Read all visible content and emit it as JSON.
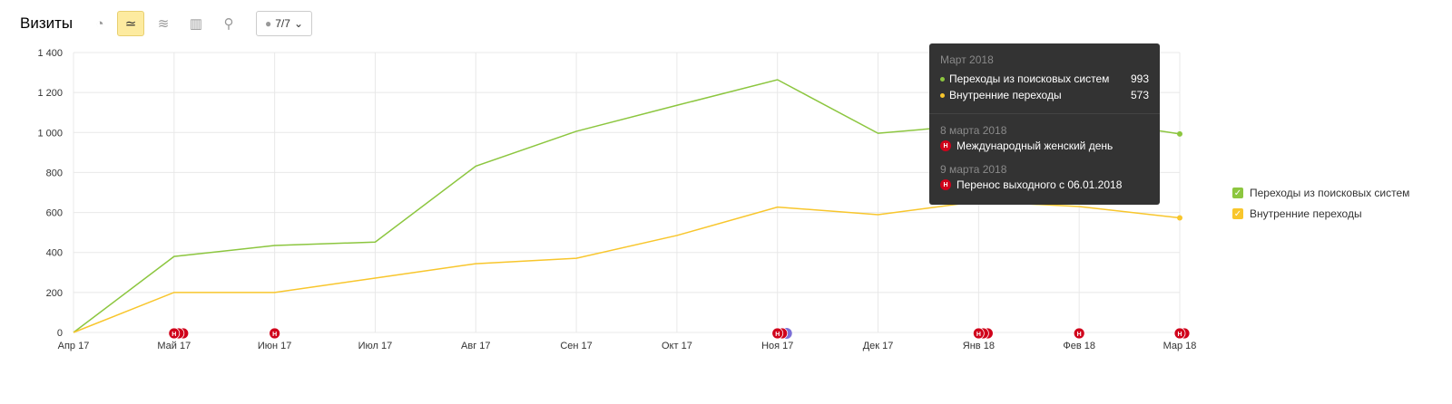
{
  "header": {
    "title": "Визиты",
    "annotations_label": "7/7"
  },
  "chart_data": {
    "type": "line",
    "title": "Визиты",
    "categories": [
      "Апр 17",
      "Май 17",
      "Июн 17",
      "Июл 17",
      "Авг 17",
      "Сен 17",
      "Окт 17",
      "Ноя 17",
      "Дек 17",
      "Янв 18",
      "Фев 18",
      "Мар 18"
    ],
    "ylim": [
      0,
      1400
    ],
    "yticks": [
      0,
      200,
      400,
      600,
      800,
      1000,
      1200,
      1400
    ],
    "ytick_labels": [
      "0",
      "200",
      "400",
      "600",
      "800",
      "1 000",
      "1 200",
      "1 400"
    ],
    "grid": true,
    "legend_placement": "right",
    "series": [
      {
        "name": "Переходы из поисковых систем",
        "color": "#8cc63f",
        "values": [
          0,
          380,
          435,
          452,
          832,
          1006,
          1136,
          1264,
          996,
          1040,
          1070,
          993
        ]
      },
      {
        "name": "Внутренние переходы",
        "color": "#f8c62c",
        "values": [
          0,
          200,
          200,
          272,
          344,
          371,
          485,
          627,
          589,
          655,
          630,
          573
        ]
      }
    ],
    "holiday_markers": [
      {
        "index": 1,
        "count": 3
      },
      {
        "index": 2,
        "count": 1
      },
      {
        "index": 7,
        "count": 2,
        "extra": true
      },
      {
        "index": 9,
        "count": 3
      },
      {
        "index": 10,
        "count": 1
      },
      {
        "index": 11,
        "count": 2
      }
    ]
  },
  "tooltip": {
    "period": "Март 2018",
    "rows": [
      {
        "label": "Переходы из поисковых систем",
        "value": "993",
        "color": "#8cc63f"
      },
      {
        "label": "Внутренние переходы",
        "value": "573",
        "color": "#f8c62c"
      }
    ],
    "events": [
      {
        "date": "8 марта 2018",
        "name": "Международный женский день"
      },
      {
        "date": "9 марта 2018",
        "name": "Перенос выходного с 06.01.2018"
      }
    ],
    "marker_letter": "Н"
  }
}
